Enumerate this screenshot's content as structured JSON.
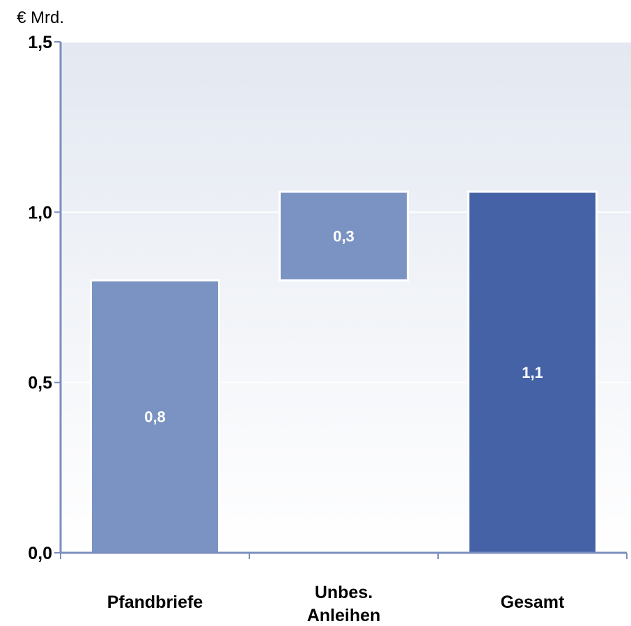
{
  "chart_data": {
    "type": "bar",
    "subtype": "waterfall",
    "unit_label": "€ Mrd.",
    "categories": [
      [
        "Pfandbriefe"
      ],
      [
        "Unbes.",
        "Anleihen"
      ],
      [
        "Gesamt"
      ]
    ],
    "bars": [
      {
        "base": 0,
        "value": 0.8,
        "label": "0,8",
        "kind": "step"
      },
      {
        "base": 0.8,
        "value": 0.26,
        "label": "0,3",
        "kind": "step"
      },
      {
        "base": 0,
        "value": 1.06,
        "label": "1,1",
        "kind": "total"
      }
    ],
    "ylim": [
      0,
      1.5
    ],
    "yticks": [
      {
        "value": 0,
        "label": "0,0"
      },
      {
        "value": 0.5,
        "label": "0,5"
      },
      {
        "value": 1.0,
        "label": "1,0"
      },
      {
        "value": 1.5,
        "label": "1,5"
      }
    ],
    "grid": true,
    "legend": "none",
    "colors": {
      "step": "#7a93c2",
      "total": "#4462a5",
      "axis": "#7a8fbf",
      "grid": "#ffffff",
      "background_top": "#e3e8f1",
      "background_bottom": "#ffffff"
    }
  }
}
